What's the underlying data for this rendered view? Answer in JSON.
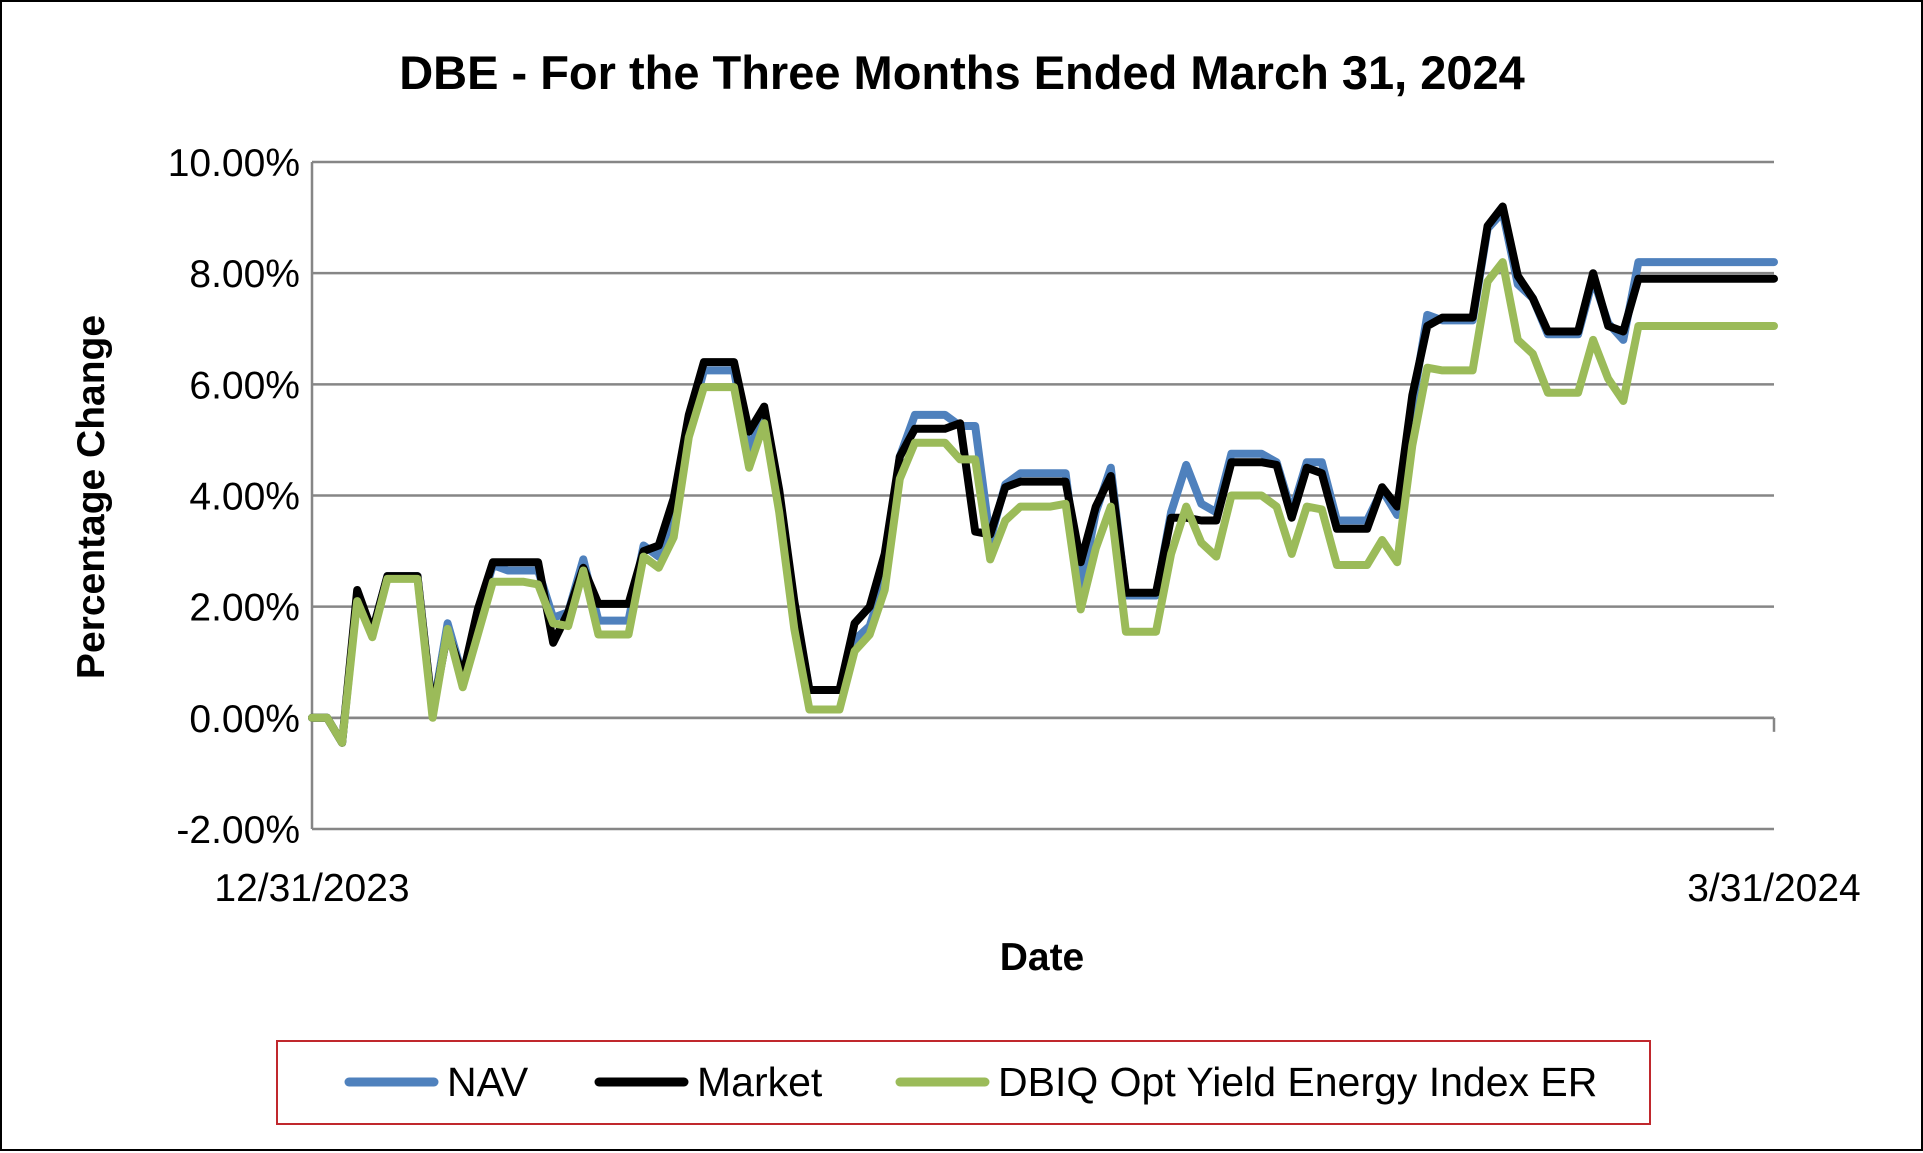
{
  "chart_data": {
    "type": "line",
    "title": "DBE - For the Three Months Ended March 31, 2024",
    "xlabel": "Date",
    "ylabel": "Percentage Change",
    "x_tick_labels": [
      "12/31/2023",
      "3/31/2024"
    ],
    "y_tick_labels": [
      "-2.00%",
      "0.00%",
      "2.00%",
      "4.00%",
      "6.00%",
      "8.00%",
      "10.00%"
    ],
    "ylim": [
      -2,
      10
    ],
    "y_unit": "%",
    "grid": true,
    "legend_position": "bottom",
    "x_points": 98,
    "series": [
      {
        "name": "NAV",
        "color": "#4F81BD",
        "values": [
          0.0,
          0.0,
          -0.45,
          2.2,
          1.55,
          2.55,
          2.55,
          2.55,
          0.1,
          1.7,
          0.75,
          1.85,
          2.75,
          2.65,
          2.65,
          2.65,
          1.8,
          1.9,
          2.85,
          1.75,
          1.75,
          1.75,
          3.1,
          2.9,
          3.7,
          5.2,
          6.25,
          6.25,
          6.25,
          4.8,
          5.5,
          3.9,
          2.0,
          0.5,
          0.5,
          0.5,
          1.4,
          1.65,
          2.5,
          4.7,
          5.45,
          5.45,
          5.45,
          5.25,
          5.25,
          3.2,
          4.2,
          4.4,
          4.4,
          4.4,
          4.4,
          2.3,
          3.7,
          4.5,
          2.2,
          2.2,
          2.2,
          3.7,
          4.55,
          3.85,
          3.7,
          4.75,
          4.75,
          4.75,
          4.6,
          3.7,
          4.6,
          4.6,
          3.55,
          3.55,
          3.55,
          4.1,
          3.65,
          5.6,
          7.25,
          7.15,
          7.15,
          7.15,
          8.8,
          9.1,
          7.8,
          7.55,
          6.9,
          6.9,
          6.9,
          7.9,
          7.1,
          6.8,
          8.2,
          8.2,
          8.2,
          8.2,
          8.2,
          8.2,
          8.2,
          8.2,
          8.2,
          8.2
        ]
      },
      {
        "name": "Market",
        "color": "#000000",
        "values": [
          0.0,
          0.0,
          -0.45,
          2.3,
          1.55,
          2.55,
          2.55,
          2.55,
          0.1,
          1.55,
          0.75,
          1.95,
          2.8,
          2.8,
          2.8,
          2.8,
          1.35,
          1.9,
          2.7,
          2.05,
          2.05,
          2.05,
          3.0,
          3.1,
          3.95,
          5.45,
          6.4,
          6.4,
          6.4,
          5.15,
          5.6,
          4.1,
          2.1,
          0.5,
          0.5,
          0.5,
          1.7,
          2.0,
          2.95,
          4.7,
          5.2,
          5.2,
          5.2,
          5.3,
          3.35,
          3.3,
          4.15,
          4.25,
          4.25,
          4.25,
          4.25,
          2.8,
          3.8,
          4.35,
          2.25,
          2.25,
          2.25,
          3.6,
          3.6,
          3.55,
          3.55,
          4.6,
          4.6,
          4.6,
          4.55,
          3.6,
          4.5,
          4.4,
          3.4,
          3.4,
          3.4,
          4.15,
          3.8,
          5.8,
          7.05,
          7.2,
          7.2,
          7.2,
          8.85,
          9.2,
          7.95,
          7.55,
          6.95,
          6.95,
          6.95,
          8.0,
          7.05,
          6.95,
          7.9,
          7.9,
          7.9,
          7.9,
          7.9,
          7.9,
          7.9,
          7.9,
          7.9,
          7.9
        ]
      },
      {
        "name": "DBIQ Opt Yield Energy Index ER",
        "color": "#9BBB59",
        "values": [
          0.0,
          0.0,
          -0.45,
          2.1,
          1.45,
          2.5,
          2.5,
          2.5,
          0.0,
          1.6,
          0.55,
          1.5,
          2.45,
          2.45,
          2.45,
          2.4,
          1.7,
          1.65,
          2.65,
          1.5,
          1.5,
          1.5,
          2.9,
          2.7,
          3.25,
          5.05,
          5.95,
          5.95,
          5.95,
          4.5,
          5.3,
          3.7,
          1.6,
          0.15,
          0.15,
          0.15,
          1.2,
          1.5,
          2.3,
          4.3,
          4.95,
          4.95,
          4.95,
          4.65,
          4.65,
          2.85,
          3.55,
          3.8,
          3.8,
          3.8,
          3.85,
          1.95,
          3.05,
          3.8,
          1.55,
          1.55,
          1.55,
          2.95,
          3.8,
          3.15,
          2.9,
          4.0,
          4.0,
          4.0,
          3.8,
          2.95,
          3.8,
          3.75,
          2.75,
          2.75,
          2.75,
          3.2,
          2.8,
          4.9,
          6.3,
          6.25,
          6.25,
          6.25,
          7.85,
          8.2,
          6.8,
          6.55,
          5.85,
          5.85,
          5.85,
          6.8,
          6.1,
          5.7,
          7.05,
          7.05,
          7.05,
          7.05,
          7.05,
          7.05,
          7.05,
          7.05,
          7.05,
          7.05
        ]
      }
    ]
  }
}
